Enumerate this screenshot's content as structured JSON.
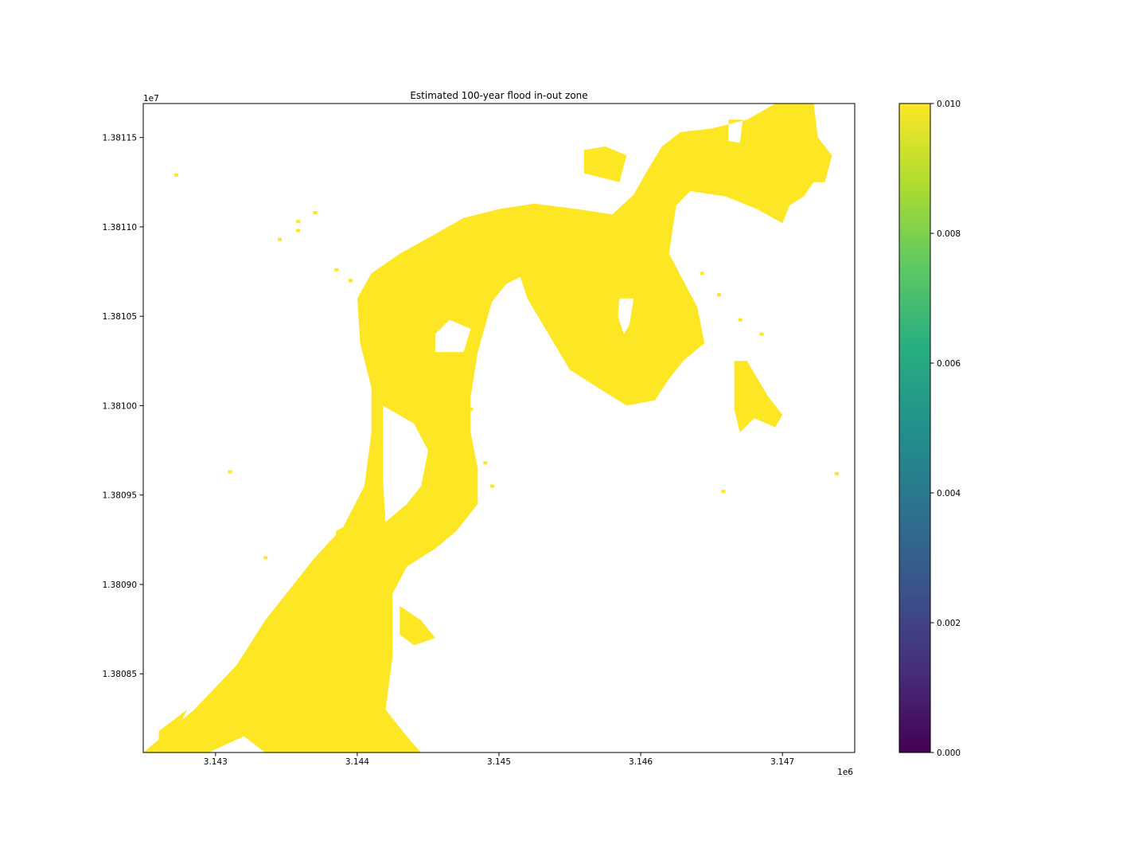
{
  "chart_data": {
    "type": "heatmap",
    "title": "Estimated 100-year flood in-out zone",
    "xlabel": "",
    "ylabel": "",
    "x_offset_label": "1e6",
    "y_offset_label": "1e7",
    "xlim": [
      3142.49,
      3147.51
    ],
    "ylim": [
      1.380806,
      1.381169
    ],
    "x_ticks": [
      {
        "value": 3143,
        "label": "3.143"
      },
      {
        "value": 3144,
        "label": "3.144"
      },
      {
        "value": 3145,
        "label": "3.145"
      },
      {
        "value": 3146,
        "label": "3.146"
      },
      {
        "value": 3147,
        "label": "3.147"
      }
    ],
    "y_ticks": [
      {
        "value": 1.38115,
        "label": "1.38115"
      },
      {
        "value": 1.3811,
        "label": "1.38110"
      },
      {
        "value": 1.38105,
        "label": "1.38105"
      },
      {
        "value": 1.381,
        "label": "1.38100"
      },
      {
        "value": 1.38095,
        "label": "1.38095"
      },
      {
        "value": 1.3809,
        "label": "1.38090"
      },
      {
        "value": 1.38085,
        "label": "1.38085"
      }
    ],
    "colorbar": {
      "colormap": "viridis",
      "range": [
        0.0,
        0.01
      ],
      "ticks": [
        {
          "value": 0.0,
          "label": "0.000"
        },
        {
          "value": 0.002,
          "label": "0.002"
        },
        {
          "value": 0.004,
          "label": "0.004"
        },
        {
          "value": 0.006,
          "label": "0.006"
        },
        {
          "value": 0.008,
          "label": "0.008"
        },
        {
          "value": 0.01,
          "label": "0.010"
        }
      ],
      "stops": [
        "#440154",
        "#472d7b",
        "#3b528b",
        "#2c728e",
        "#21918c",
        "#28ae80",
        "#5ec962",
        "#addc30",
        "#fde725"
      ]
    },
    "flood_value": 0.01,
    "flood_color": "#fde725",
    "grid": false,
    "flood_zone": {
      "main_channel": [
        [
          3142.49,
          1.380806
        ],
        [
          3142.85,
          1.38083
        ],
        [
          3143.15,
          1.380855
        ],
        [
          3143.35,
          1.38088
        ],
        [
          3143.55,
          1.3809
        ],
        [
          3143.7,
          1.380915
        ],
        [
          3143.9,
          1.380932
        ],
        [
          3144.05,
          1.380955
        ],
        [
          3144.1,
          1.380985
        ],
        [
          3144.1,
          1.38101
        ],
        [
          3144.02,
          1.381035
        ],
        [
          3144.0,
          1.38106
        ],
        [
          3144.1,
          1.381074
        ],
        [
          3144.3,
          1.381085
        ],
        [
          3144.55,
          1.381096
        ],
        [
          3144.75,
          1.381105
        ],
        [
          3145.0,
          1.38111
        ],
        [
          3145.25,
          1.381113
        ],
        [
          3145.55,
          1.38111
        ],
        [
          3145.8,
          1.381107
        ],
        [
          3145.95,
          1.381118
        ],
        [
          3146.05,
          1.381132
        ],
        [
          3146.15,
          1.381145
        ],
        [
          3146.28,
          1.381153
        ],
        [
          3146.5,
          1.381155
        ],
        [
          3146.75,
          1.38116
        ],
        [
          3146.95,
          1.381169
        ],
        [
          3147.22,
          1.381169
        ],
        [
          3147.25,
          1.38115
        ],
        [
          3147.35,
          1.38114
        ],
        [
          3147.3,
          1.381125
        ],
        [
          3147.22,
          1.381125
        ],
        [
          3147.15,
          1.381117
        ],
        [
          3147.05,
          1.381112
        ],
        [
          3147.0,
          1.381102
        ],
        [
          3146.82,
          1.38111
        ],
        [
          3146.6,
          1.381117
        ],
        [
          3146.35,
          1.38112
        ],
        [
          3146.25,
          1.381112
        ],
        [
          3146.2,
          1.381085
        ],
        [
          3146.3,
          1.38107
        ],
        [
          3146.4,
          1.381055
        ],
        [
          3146.45,
          1.381035
        ],
        [
          3146.3,
          1.381025
        ],
        [
          3146.2,
          1.381015
        ],
        [
          3146.1,
          1.381003
        ],
        [
          3145.9,
          1.381
        ],
        [
          3145.7,
          1.38101
        ],
        [
          3145.5,
          1.38102
        ],
        [
          3145.35,
          1.38104
        ],
        [
          3145.2,
          1.38106
        ],
        [
          3145.15,
          1.381072
        ],
        [
          3145.05,
          1.381068
        ],
        [
          3144.95,
          1.381058
        ],
        [
          3144.85,
          1.38103
        ],
        [
          3144.8,
          1.381005
        ],
        [
          3144.8,
          1.380985
        ],
        [
          3144.85,
          1.380965
        ],
        [
          3144.85,
          1.380945
        ],
        [
          3144.7,
          1.38093
        ],
        [
          3144.55,
          1.38092
        ],
        [
          3144.35,
          1.38091
        ],
        [
          3144.25,
          1.380895
        ],
        [
          3144.25,
          1.38086
        ],
        [
          3144.2,
          1.38083
        ],
        [
          3144.35,
          1.380815
        ],
        [
          3144.45,
          1.380806
        ],
        [
          3143.35,
          1.380806
        ],
        [
          3143.2,
          1.380815
        ],
        [
          3142.95,
          1.380806
        ]
      ],
      "holes": [
        [
          [
            3144.18,
            1.381
          ],
          [
            3144.4,
            1.38099
          ],
          [
            3144.5,
            1.380975
          ],
          [
            3144.45,
            1.380955
          ],
          [
            3144.35,
            1.380945
          ],
          [
            3144.2,
            1.380935
          ],
          [
            3144.18,
            1.38096
          ]
        ],
        [
          [
            3144.55,
            1.38103
          ],
          [
            3144.75,
            1.38103
          ],
          [
            3144.8,
            1.381043
          ],
          [
            3144.65,
            1.381048
          ],
          [
            3144.55,
            1.38104
          ]
        ],
        [
          [
            3145.85,
            1.38106
          ],
          [
            3145.95,
            1.38106
          ],
          [
            3145.92,
            1.381045
          ],
          [
            3145.88,
            1.38104
          ],
          [
            3145.84,
            1.38105
          ]
        ],
        [
          [
            3146.62,
            1.38116
          ],
          [
            3146.72,
            1.38116
          ],
          [
            3146.7,
            1.381147
          ],
          [
            3146.62,
            1.381148
          ]
        ]
      ],
      "islands": [
        [
          [
            3146.66,
            1.381025
          ],
          [
            3146.75,
            1.381025
          ],
          [
            3146.9,
            1.381005
          ],
          [
            3147.0,
            1.380995
          ],
          [
            3146.95,
            1.380988
          ],
          [
            3146.8,
            1.380993
          ],
          [
            3146.7,
            1.380985
          ],
          [
            3146.66,
            1.380998
          ]
        ],
        [
          [
            3145.6,
            1.381143
          ],
          [
            3145.75,
            1.381145
          ],
          [
            3145.9,
            1.38114
          ],
          [
            3145.85,
            1.381125
          ],
          [
            3145.6,
            1.38113
          ]
        ],
        [
          [
            3144.3,
            1.380888
          ],
          [
            3144.45,
            1.38088
          ],
          [
            3144.55,
            1.38087
          ],
          [
            3144.4,
            1.380866
          ],
          [
            3144.3,
            1.380872
          ]
        ],
        [
          [
            3142.6,
            1.380818
          ],
          [
            3142.8,
            1.38083
          ],
          [
            3142.75,
            1.380822
          ],
          [
            3142.6,
            1.380812
          ]
        ],
        [
          [
            3143.65,
            1.380885
          ],
          [
            3143.7,
            1.380887
          ],
          [
            3143.7,
            1.380879
          ],
          [
            3143.65,
            1.380878
          ]
        ],
        [
          [
            3143.85,
            1.38093
          ],
          [
            3143.98,
            1.380935
          ],
          [
            3143.98,
            1.380924
          ],
          [
            3143.85,
            1.380922
          ]
        ]
      ],
      "specks": [
        [
          3142.72,
          1.381129
        ],
        [
          3143.7,
          1.381108
        ],
        [
          3143.58,
          1.381103
        ],
        [
          3143.58,
          1.381098
        ],
        [
          3143.45,
          1.381093
        ],
        [
          3143.85,
          1.381076
        ],
        [
          3143.95,
          1.38107
        ],
        [
          3143.1,
          1.380963
        ],
        [
          3143.35,
          1.380915
        ],
        [
          3146.58,
          1.380952
        ],
        [
          3147.38,
          1.380962
        ],
        [
          3144.8,
          1.380998
        ],
        [
          3144.9,
          1.380968
        ],
        [
          3144.95,
          1.380955
        ],
        [
          3144.1,
          1.38095
        ],
        [
          3144.55,
          1.38098
        ],
        [
          3146.7,
          1.381048
        ],
        [
          3146.55,
          1.381062
        ],
        [
          3146.43,
          1.381074
        ],
        [
          3146.85,
          1.38104
        ]
      ]
    }
  }
}
